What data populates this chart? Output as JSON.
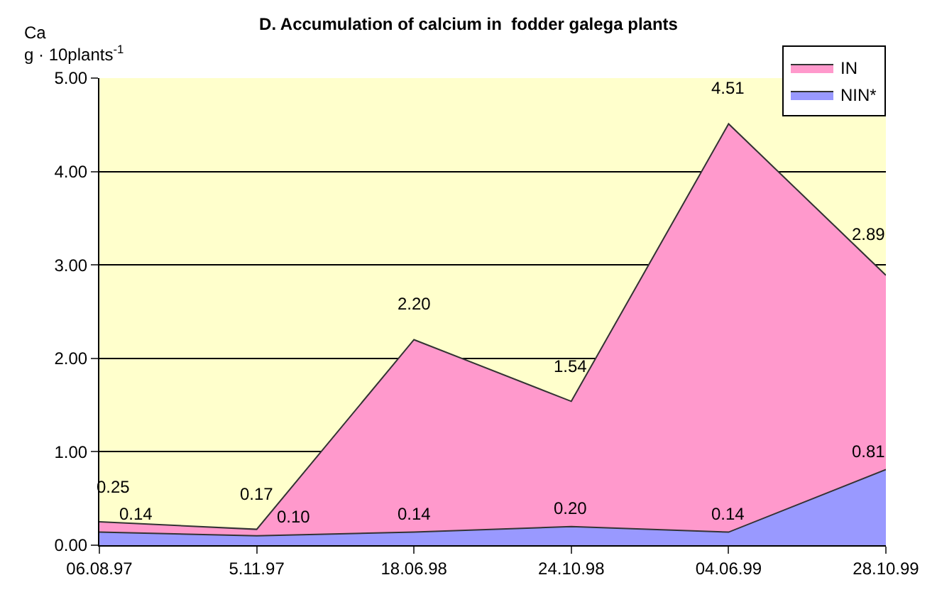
{
  "chart_data": {
    "type": "area",
    "title": "D. Accumulation of calcium in  fodder galega plants",
    "ylabel": "Ca\ng · 10plants$^{-1}$",
    "categories": [
      "06.08.97",
      "5.11.97",
      "18.06.98",
      "24.10.98",
      "04.06.99",
      "28.10.99"
    ],
    "series": [
      {
        "name": "IN",
        "color": "#ff99cc",
        "values": [
          0.25,
          0.17,
          2.2,
          1.54,
          4.51,
          2.89
        ],
        "value_labels": [
          "0.25",
          "0.17",
          "2.20",
          "1.54",
          "4.51",
          "2.89"
        ]
      },
      {
        "name": "NIN*",
        "color": "#9999ff",
        "values": [
          0.14,
          0.1,
          0.14,
          0.2,
          0.14,
          0.81
        ],
        "value_labels": [
          "0.14",
          "0.10",
          "0.14",
          "0.20",
          "0.14",
          "0.81"
        ]
      }
    ],
    "ylim": [
      0,
      5
    ],
    "yticks": [
      {
        "value": 0,
        "label": "0.00"
      },
      {
        "value": 1,
        "label": "1.00"
      },
      {
        "value": 2,
        "label": "2.00"
      },
      {
        "value": 3,
        "label": "3.00"
      },
      {
        "value": 4,
        "label": "4.00"
      },
      {
        "value": 5,
        "label": "5.00"
      }
    ],
    "grid": "y",
    "legend": "top right"
  }
}
